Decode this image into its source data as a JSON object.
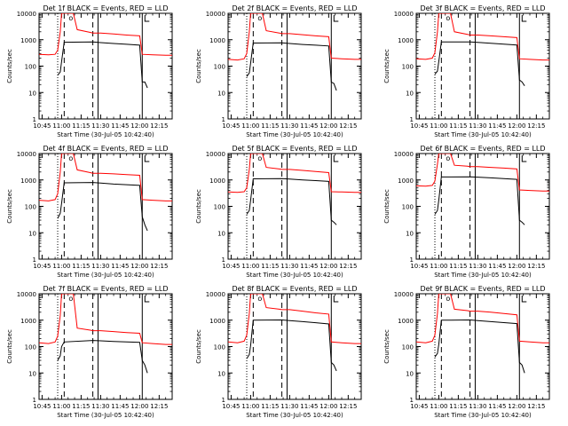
{
  "chart_data": [
    {
      "type": "line",
      "title": "Det 1f BLACK = Events, RED = LLD",
      "xlabel": "Start Time (30-Jul-05 10:42:40)",
      "ylabel": "Counts/sec",
      "xlim": [
        "10:42:40",
        "12:25"
      ],
      "ylim": [
        1,
        10000
      ],
      "yscale": "log",
      "x_tick_labels": [
        "10:45",
        "11:00",
        "11:15",
        "11:30",
        "11:45",
        "12:00",
        "12:15"
      ],
      "y_tick_labels": [
        "1",
        "10",
        "100",
        "1000",
        "10000"
      ],
      "markers": {
        "dotted": "10:57",
        "dashed_1": "11:02",
        "dashed_2": "11:24",
        "solid_1": "11:28",
        "solid_2": "12:02"
      },
      "series": [
        {
          "color": "#ff0000",
          "x": [
            "10:42:40",
            "10:50",
            "10:55",
            "10:57",
            "10:59",
            "11:00",
            "11:05",
            "11:09",
            "11:12",
            "11:22",
            "11:24",
            "11:30",
            "11:40",
            "11:50",
            "12:00",
            "12:02",
            "12:10",
            "12:20",
            "12:25"
          ],
          "y": [
            280,
            270,
            280,
            400,
            2000,
            10000,
            10000,
            10000,
            2400,
            1900,
            1800,
            1800,
            1650,
            1500,
            1400,
            280,
            270,
            260,
            260
          ]
        },
        {
          "color": "#000000",
          "x": [
            "10:57",
            "10:59",
            "11:00",
            "11:02",
            "11:24",
            "11:30",
            "11:40",
            "11:50",
            "12:00",
            "12:02",
            "12:04",
            "12:06"
          ],
          "y": [
            45,
            60,
            150,
            800,
            820,
            780,
            720,
            670,
            620,
            25,
            25,
            15
          ]
        }
      ]
    },
    {
      "type": "line",
      "title": "Det 2f BLACK = Events, RED = LLD",
      "xlabel": "Start Time (30-Jul-05 10:42:40)",
      "ylabel": "Counts/sec",
      "xlim": [
        "10:42:40",
        "12:25"
      ],
      "ylim": [
        1,
        10000
      ],
      "yscale": "log",
      "x_tick_labels": [
        "10:45",
        "11:00",
        "11:15",
        "11:30",
        "11:45",
        "12:00",
        "12:15"
      ],
      "y_tick_labels": [
        "1",
        "10",
        "100",
        "1000",
        "10000"
      ],
      "markers": {
        "dotted": "10:57",
        "dashed_1": "11:02",
        "dashed_2": "11:24",
        "solid_1": "11:28",
        "solid_2": "12:02"
      },
      "series": [
        {
          "color": "#ff0000",
          "x": [
            "10:42:40",
            "10:50",
            "10:55",
            "10:57",
            "10:59",
            "11:00",
            "11:05",
            "11:09",
            "11:12",
            "11:22",
            "11:24",
            "11:30",
            "11:40",
            "11:50",
            "12:00",
            "12:02",
            "12:10",
            "12:20",
            "12:25"
          ],
          "y": [
            180,
            170,
            190,
            300,
            2000,
            10000,
            10000,
            10000,
            2200,
            1800,
            1700,
            1700,
            1550,
            1400,
            1300,
            200,
            190,
            180,
            180
          ]
        },
        {
          "color": "#000000",
          "x": [
            "10:57",
            "10:59",
            "11:00",
            "11:02",
            "11:24",
            "11:30",
            "11:40",
            "11:50",
            "12:00",
            "12:02",
            "12:04",
            "12:06"
          ],
          "y": [
            40,
            55,
            130,
            750,
            760,
            720,
            660,
            620,
            580,
            25,
            22,
            12
          ]
        }
      ]
    },
    {
      "type": "line",
      "title": "Det 3f BLACK = Events, RED = LLD",
      "xlabel": "Start Time (30-Jul-05 10:42:40)",
      "ylabel": "Counts/sec",
      "xlim": [
        "10:42:40",
        "12:25"
      ],
      "ylim": [
        1,
        10000
      ],
      "yscale": "log",
      "x_tick_labels": [
        "10:45",
        "11:00",
        "11:15",
        "11:30",
        "11:45",
        "12:00",
        "12:15"
      ],
      "y_tick_labels": [
        "1",
        "10",
        "100",
        "1000",
        "10000"
      ],
      "markers": {
        "dotted": "10:57",
        "dashed_1": "11:02",
        "dashed_2": "11:24",
        "solid_1": "11:28",
        "solid_2": "12:02"
      },
      "series": [
        {
          "color": "#ff0000",
          "x": [
            "10:42:40",
            "10:50",
            "10:55",
            "10:57",
            "10:59",
            "11:00",
            "11:05",
            "11:09",
            "11:12",
            "11:22",
            "11:24",
            "11:30",
            "11:40",
            "11:50",
            "12:00",
            "12:02",
            "12:10",
            "12:20",
            "12:25"
          ],
          "y": [
            190,
            180,
            200,
            320,
            2000,
            10000,
            10000,
            10000,
            2000,
            1600,
            1500,
            1500,
            1400,
            1300,
            1200,
            190,
            180,
            170,
            170
          ]
        },
        {
          "color": "#000000",
          "x": [
            "10:57",
            "10:59",
            "11:00",
            "11:02",
            "11:24",
            "11:30",
            "11:40",
            "11:50",
            "12:00",
            "12:02",
            "12:04",
            "12:06"
          ],
          "y": [
            50,
            65,
            150,
            820,
            830,
            790,
            730,
            680,
            630,
            30,
            25,
            18
          ]
        }
      ]
    },
    {
      "type": "line",
      "title": "Det 4f BLACK = Events, RED = LLD",
      "xlabel": "Start Time (30-Jul-05 10:42:40)",
      "ylabel": "Counts/sec",
      "xlim": [
        "10:42:40",
        "12:25"
      ],
      "ylim": [
        1,
        10000
      ],
      "yscale": "log",
      "x_tick_labels": [
        "10:45",
        "11:00",
        "11:15",
        "11:30",
        "11:45",
        "12:00",
        "12:15"
      ],
      "y_tick_labels": [
        "1",
        "10",
        "100",
        "1000",
        "10000"
      ],
      "markers": {
        "dotted": "10:57",
        "dashed_1": "11:02",
        "dashed_2": "11:24",
        "solid_1": "11:28",
        "solid_2": "12:02"
      },
      "series": [
        {
          "color": "#ff0000",
          "x": [
            "10:42:40",
            "10:50",
            "10:55",
            "10:57",
            "10:59",
            "11:00",
            "11:05",
            "11:09",
            "11:12",
            "11:22",
            "11:24",
            "11:30",
            "11:40",
            "11:50",
            "12:00",
            "12:02",
            "12:10",
            "12:20",
            "12:25"
          ],
          "y": [
            170,
            160,
            180,
            300,
            2000,
            10000,
            10000,
            10000,
            2400,
            1900,
            1800,
            1800,
            1700,
            1600,
            1500,
            180,
            170,
            160,
            160
          ]
        },
        {
          "color": "#000000",
          "x": [
            "10:57",
            "10:59",
            "11:00",
            "11:02",
            "11:24",
            "11:30",
            "11:40",
            "11:50",
            "12:00",
            "12:02",
            "12:04",
            "12:06"
          ],
          "y": [
            35,
            55,
            130,
            780,
            800,
            760,
            700,
            660,
            620,
            40,
            20,
            12
          ]
        }
      ]
    },
    {
      "type": "line",
      "title": "Det 5f BLACK = Events, RED = LLD",
      "xlabel": "Start Time (30-Jul-05 10:42:40)",
      "ylabel": "Counts/sec",
      "xlim": [
        "10:42:40",
        "12:25"
      ],
      "ylim": [
        1,
        10000
      ],
      "yscale": "log",
      "x_tick_labels": [
        "10:45",
        "11:00",
        "11:15",
        "11:30",
        "11:45",
        "12:00",
        "12:15"
      ],
      "y_tick_labels": [
        "1",
        "10",
        "100",
        "1000",
        "10000"
      ],
      "markers": {
        "dotted": "10:57",
        "dashed_1": "11:02",
        "dashed_2": "11:24",
        "solid_1": "11:28",
        "solid_2": "12:02"
      },
      "series": [
        {
          "color": "#ff0000",
          "x": [
            "10:42:40",
            "10:50",
            "10:55",
            "10:57",
            "10:59",
            "11:00",
            "11:05",
            "11:09",
            "11:12",
            "11:22",
            "11:24",
            "11:30",
            "11:40",
            "11:50",
            "12:00",
            "12:02",
            "12:10",
            "12:20",
            "12:25"
          ],
          "y": [
            350,
            340,
            360,
            500,
            2500,
            10000,
            10000,
            10000,
            3000,
            2600,
            2500,
            2500,
            2300,
            2100,
            1900,
            360,
            350,
            340,
            340
          ]
        },
        {
          "color": "#000000",
          "x": [
            "10:57",
            "10:59",
            "11:00",
            "11:02",
            "11:24",
            "11:30",
            "11:40",
            "11:50",
            "12:00",
            "12:02",
            "12:04",
            "12:06"
          ],
          "y": [
            50,
            70,
            170,
            1100,
            1120,
            1080,
            1000,
            940,
            880,
            30,
            25,
            20
          ]
        }
      ]
    },
    {
      "type": "line",
      "title": "Det 6f BLACK = Events, RED = LLD",
      "xlabel": "Start Time (30-Jul-05 10:42:40)",
      "ylabel": "Counts/sec",
      "xlim": [
        "10:42:40",
        "12:25"
      ],
      "ylim": [
        1,
        10000
      ],
      "yscale": "log",
      "x_tick_labels": [
        "10:45",
        "11:00",
        "11:15",
        "11:30",
        "11:45",
        "12:00",
        "12:15"
      ],
      "y_tick_labels": [
        "1",
        "10",
        "100",
        "1000",
        "10000"
      ],
      "markers": {
        "dotted": "10:57",
        "dashed_1": "11:02",
        "dashed_2": "11:24",
        "solid_1": "11:28",
        "solid_2": "12:02"
      },
      "series": [
        {
          "color": "#ff0000",
          "x": [
            "10:42:40",
            "10:50",
            "10:55",
            "10:57",
            "10:59",
            "11:00",
            "11:05",
            "11:09",
            "11:12",
            "11:22",
            "11:24",
            "11:30",
            "11:40",
            "11:50",
            "12:00",
            "12:02",
            "12:10",
            "12:20",
            "12:25"
          ],
          "y": [
            600,
            580,
            620,
            900,
            4000,
            10000,
            10000,
            10000,
            3600,
            3300,
            3200,
            3200,
            3000,
            2800,
            2600,
            420,
            400,
            380,
            380
          ]
        },
        {
          "color": "#000000",
          "x": [
            "10:57",
            "10:59",
            "11:00",
            "11:02",
            "11:24",
            "11:30",
            "11:40",
            "11:50",
            "12:00",
            "12:02",
            "12:04",
            "12:06"
          ],
          "y": [
            50,
            70,
            170,
            1300,
            1320,
            1280,
            1200,
            1120,
            1050,
            30,
            25,
            20
          ]
        }
      ]
    },
    {
      "type": "line",
      "title": "Det 7f BLACK = Events, RED = LLD",
      "xlabel": "Start Time (30-Jul-05 10:42:40)",
      "ylabel": "Counts/sec",
      "xlim": [
        "10:42:40",
        "12:25"
      ],
      "ylim": [
        1,
        10000
      ],
      "yscale": "log",
      "x_tick_labels": [
        "10:45",
        "11:00",
        "11:15",
        "11:30",
        "11:45",
        "12:00",
        "12:15"
      ],
      "y_tick_labels": [
        "1",
        "10",
        "100",
        "1000",
        "10000"
      ],
      "markers": {
        "dotted": "10:57",
        "dashed_1": "11:02",
        "dashed_2": "11:24",
        "solid_1": "11:28",
        "solid_2": "12:02"
      },
      "series": [
        {
          "color": "#ff0000",
          "x": [
            "10:42:40",
            "10:50",
            "10:55",
            "10:57",
            "10:59",
            "11:00",
            "11:05",
            "11:09",
            "11:12",
            "11:22",
            "11:24",
            "11:30",
            "11:40",
            "11:50",
            "12:00",
            "12:02",
            "12:10",
            "12:20",
            "12:25"
          ],
          "y": [
            140,
            130,
            150,
            250,
            1500,
            10000,
            10000,
            10000,
            500,
            420,
            400,
            400,
            370,
            340,
            320,
            140,
            130,
            120,
            120
          ]
        },
        {
          "color": "#000000",
          "x": [
            "10:57",
            "10:59",
            "11:00",
            "11:02",
            "11:24",
            "11:30",
            "11:40",
            "11:50",
            "12:00",
            "12:02",
            "12:04",
            "12:06"
          ],
          "y": [
            30,
            45,
            100,
            150,
            170,
            165,
            155,
            150,
            145,
            30,
            20,
            10
          ]
        }
      ]
    },
    {
      "type": "line",
      "title": "Det 8f BLACK = Events, RED = LLD",
      "xlabel": "Start Time (30-Jul-05 10:42:40)",
      "ylabel": "Counts/sec",
      "xlim": [
        "10:42:40",
        "12:25"
      ],
      "ylim": [
        1,
        10000
      ],
      "yscale": "log",
      "x_tick_labels": [
        "10:45",
        "11:00",
        "11:15",
        "11:30",
        "11:45",
        "12:00",
        "12:15"
      ],
      "y_tick_labels": [
        "1",
        "10",
        "100",
        "1000",
        "10000"
      ],
      "markers": {
        "dotted": "10:57",
        "dashed_1": "11:02",
        "dashed_2": "11:24",
        "solid_1": "11:28",
        "solid_2": "12:02"
      },
      "series": [
        {
          "color": "#ff0000",
          "x": [
            "10:42:40",
            "10:50",
            "10:55",
            "10:57",
            "10:59",
            "11:00",
            "11:05",
            "11:09",
            "11:12",
            "11:22",
            "11:24",
            "11:30",
            "11:40",
            "11:50",
            "12:00",
            "12:02",
            "12:10",
            "12:20",
            "12:25"
          ],
          "y": [
            150,
            140,
            160,
            270,
            1800,
            10000,
            10000,
            10000,
            3000,
            2600,
            2500,
            2500,
            2200,
            1900,
            1700,
            150,
            140,
            130,
            130
          ]
        },
        {
          "color": "#000000",
          "x": [
            "10:57",
            "10:59",
            "11:00",
            "11:02",
            "11:24",
            "11:30",
            "11:40",
            "11:50",
            "12:00",
            "12:02",
            "12:04",
            "12:06"
          ],
          "y": [
            35,
            50,
            110,
            1000,
            1020,
            960,
            880,
            800,
            720,
            25,
            20,
            12
          ]
        }
      ]
    },
    {
      "type": "line",
      "title": "Det 9f BLACK = Events, RED = LLD",
      "xlabel": "Start Time (30-Jul-05 10:42:40)",
      "ylabel": "Counts/sec",
      "xlim": [
        "10:42:40",
        "12:25"
      ],
      "ylim": [
        1,
        10000
      ],
      "yscale": "log",
      "x_tick_labels": [
        "10:45",
        "11:00",
        "11:15",
        "11:30",
        "11:45",
        "12:00",
        "12:15"
      ],
      "y_tick_labels": [
        "1",
        "10",
        "100",
        "1000",
        "10000"
      ],
      "markers": {
        "dotted": "10:57",
        "dashed_1": "11:02",
        "dashed_2": "11:24",
        "solid_1": "11:28",
        "solid_2": "12:02"
      },
      "series": [
        {
          "color": "#ff0000",
          "x": [
            "10:42:40",
            "10:50",
            "10:55",
            "10:57",
            "10:59",
            "11:00",
            "11:05",
            "11:09",
            "11:12",
            "11:22",
            "11:24",
            "11:30",
            "11:40",
            "11:50",
            "12:00",
            "12:02",
            "12:10",
            "12:20",
            "12:25"
          ],
          "y": [
            150,
            140,
            160,
            270,
            1800,
            10000,
            10000,
            10000,
            2600,
            2300,
            2200,
            2200,
            2000,
            1800,
            1600,
            160,
            150,
            140,
            140
          ]
        },
        {
          "color": "#000000",
          "x": [
            "10:57",
            "10:59",
            "11:00",
            "11:02",
            "11:24",
            "11:30",
            "11:40",
            "11:50",
            "12:00",
            "12:02",
            "12:04",
            "12:06"
          ],
          "y": [
            40,
            55,
            120,
            1000,
            1020,
            960,
            880,
            810,
            740,
            25,
            20,
            10
          ]
        }
      ]
    }
  ]
}
